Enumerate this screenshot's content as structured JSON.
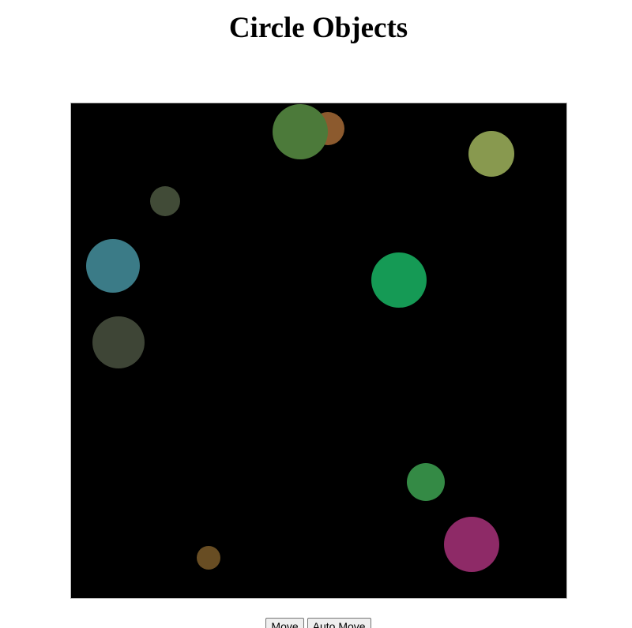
{
  "page": {
    "title": "Circle Objects"
  },
  "canvas": {
    "background": "#000000",
    "border_color": "#b8b8b8",
    "circle_count": 10,
    "circles": [
      {
        "color": "#8c5a2e"
      },
      {
        "color": "#4c7a3a"
      },
      {
        "color": "#88994f"
      },
      {
        "color": "#414b37"
      },
      {
        "color": "#3b7b87"
      },
      {
        "color": "#159a55"
      },
      {
        "color": "#3e4536"
      },
      {
        "color": "#348a45"
      },
      {
        "color": "#8e2a67"
      },
      {
        "color": "#684d23"
      }
    ]
  },
  "controls": {
    "move_label": "Move",
    "auto_move_label": "Auto Move"
  }
}
